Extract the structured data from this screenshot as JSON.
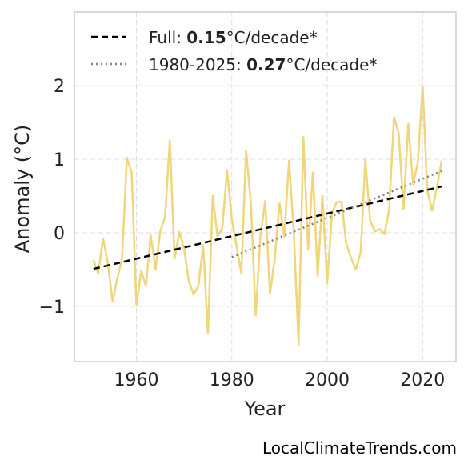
{
  "chart_data": {
    "type": "line",
    "xlabel": "Year",
    "ylabel": "Anomaly (°C)",
    "xlim": [
      1947,
      2027
    ],
    "ylim": [
      -1.75,
      3.0
    ],
    "x_ticks": [
      1960,
      1980,
      2000,
      2020
    ],
    "y_ticks": [
      -1,
      0,
      1,
      2
    ],
    "y_tick_labels": [
      "−1",
      "0",
      "1",
      "2"
    ],
    "grid": true,
    "legend_position": "top-left",
    "colors": {
      "series": "#f0d57a",
      "full_trend": "#000000",
      "recent_trend": "#808080"
    },
    "series": [
      {
        "x": [
          1951,
          1952,
          1953,
          1954,
          1955,
          1956,
          1957,
          1958,
          1959,
          1960,
          1961,
          1962,
          1963,
          1964,
          1965,
          1966,
          1967,
          1968,
          1969,
          1970,
          1971,
          1972,
          1973,
          1974,
          1975,
          1976,
          1977,
          1978,
          1979,
          1980,
          1981,
          1982,
          1983,
          1984,
          1985,
          1986,
          1987,
          1988,
          1989,
          1990,
          1991,
          1992,
          1993,
          1994,
          1995,
          1996,
          1997,
          1998,
          1999,
          2000,
          2001,
          2002,
          2003,
          2004,
          2005,
          2006,
          2007,
          2008,
          2009,
          2010,
          2011,
          2012,
          2013,
          2014,
          2015,
          2016,
          2017,
          2018,
          2019,
          2020,
          2021,
          2022,
          2023,
          2024
        ],
        "y": [
          -0.37,
          -0.55,
          -0.08,
          -0.4,
          -0.93,
          -0.62,
          -0.35,
          1.02,
          0.82,
          -0.98,
          -0.52,
          -0.72,
          -0.03,
          -0.5,
          0.02,
          0.22,
          1.25,
          -0.35,
          0.01,
          -0.22,
          -0.66,
          -0.84,
          -0.72,
          -0.17,
          -1.37,
          0.5,
          -0.05,
          0.06,
          0.85,
          0.18,
          -0.18,
          -0.55,
          1.12,
          0.4,
          -1.12,
          -0.05,
          0.43,
          -0.83,
          -0.35,
          0.4,
          -0.05,
          0.98,
          0.0,
          -1.52,
          1.3,
          -0.23,
          0.82,
          -0.59,
          0.5,
          -0.68,
          0.26,
          0.42,
          0.42,
          -0.15,
          -0.34,
          -0.5,
          -0.27,
          0.99,
          0.17,
          0.02,
          0.05,
          -0.02,
          0.32,
          1.57,
          1.35,
          0.32,
          1.48,
          0.66,
          0.96,
          1.99,
          0.57,
          0.3,
          0.62,
          0.98
        ]
      }
    ],
    "trends": [
      {
        "x": [
          1951,
          2024
        ],
        "y": [
          -0.49,
          0.63
        ]
      },
      {
        "x": [
          1980,
          2024
        ],
        "y": [
          -0.33,
          0.84
        ]
      }
    ],
    "legend": [
      {
        "prefix": "Full: ",
        "value": "0.15",
        "suffix": "°C/decade*"
      },
      {
        "prefix": "1980-2025: ",
        "value": "0.27",
        "suffix": "°C/decade*"
      }
    ]
  },
  "watermark": "LocalClimateTrends.com"
}
